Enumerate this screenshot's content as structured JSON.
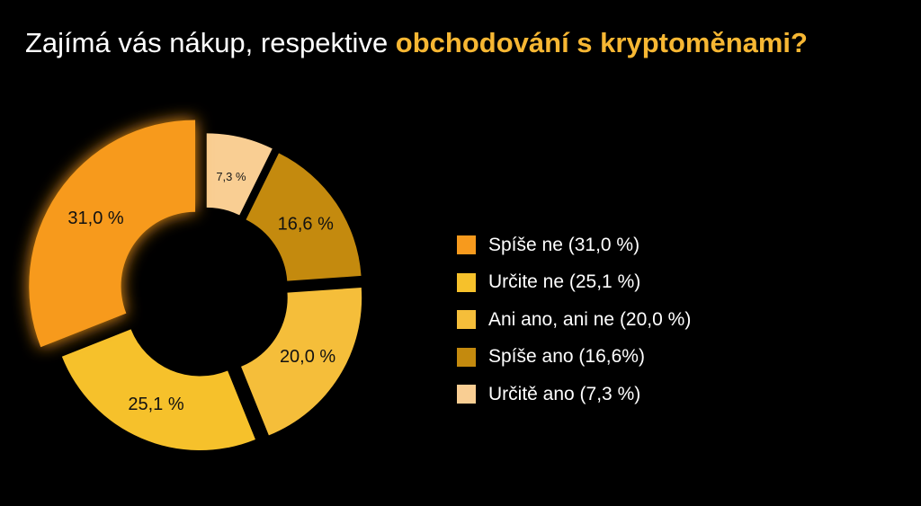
{
  "title": {
    "prefix": "Zajímá vás nákup, respektive ",
    "highlight": "obchodování s kryptoměnami?",
    "highlight_color": "#F7B733"
  },
  "chart_data": {
    "type": "pie",
    "title": "Zajímá vás nákup, respektive obchodování s kryptoměnami?",
    "slices": [
      {
        "name": "Určitě ano",
        "value": 7.3,
        "label": "7,3 %",
        "legend": "Určitě ano (7,3 %)",
        "color": "#F9CE93",
        "label_color": "#1a1a1a"
      },
      {
        "name": "Spíše ano",
        "value": 16.6,
        "label": "16,6 %",
        "legend": "Spíše ano (16,6%)",
        "color": "#C48A0E",
        "label_color": "#111111"
      },
      {
        "name": "Ani ano, ani ne",
        "value": 20.0,
        "label": "20,0 %",
        "legend": "Ani ano, ani ne (20,0 %)",
        "color": "#F5BE3A",
        "label_color": "#111111"
      },
      {
        "name": "Určite ne",
        "value": 25.1,
        "label": "25,1 %",
        "legend": "Určite ne (25,1 %)",
        "color": "#F6C12B",
        "label_color": "#111111"
      },
      {
        "name": "Spíše ne",
        "value": 31.0,
        "label": "31,0 %",
        "legend": "Spíše ne (31,0 %)",
        "color": "#F79A1D",
        "label_color": "#111111"
      }
    ],
    "legend_order": [
      "Spíše ne",
      "Určite ne",
      "Ani ano, ani ne",
      "Spíše ano",
      "Určitě ano"
    ],
    "legend_position": "right",
    "inner_radius_ratio": 0.5,
    "start_angle_deg": 0,
    "direction": "clockwise"
  },
  "colors": {
    "background": "#000000",
    "text": "#FFFFFF"
  }
}
